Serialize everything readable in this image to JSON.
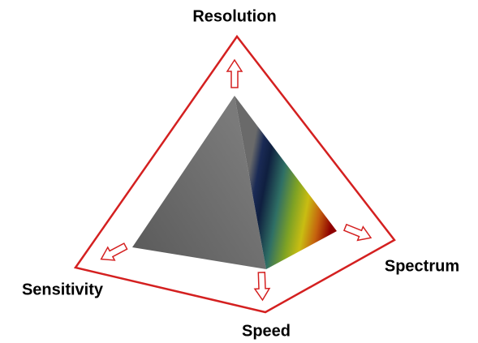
{
  "nodes": [
    {
      "label": "Resolution"
    },
    {
      "label": "Spectrum"
    },
    {
      "label": "Sensitivity"
    },
    {
      "label": "Speed"
    }
  ]
}
